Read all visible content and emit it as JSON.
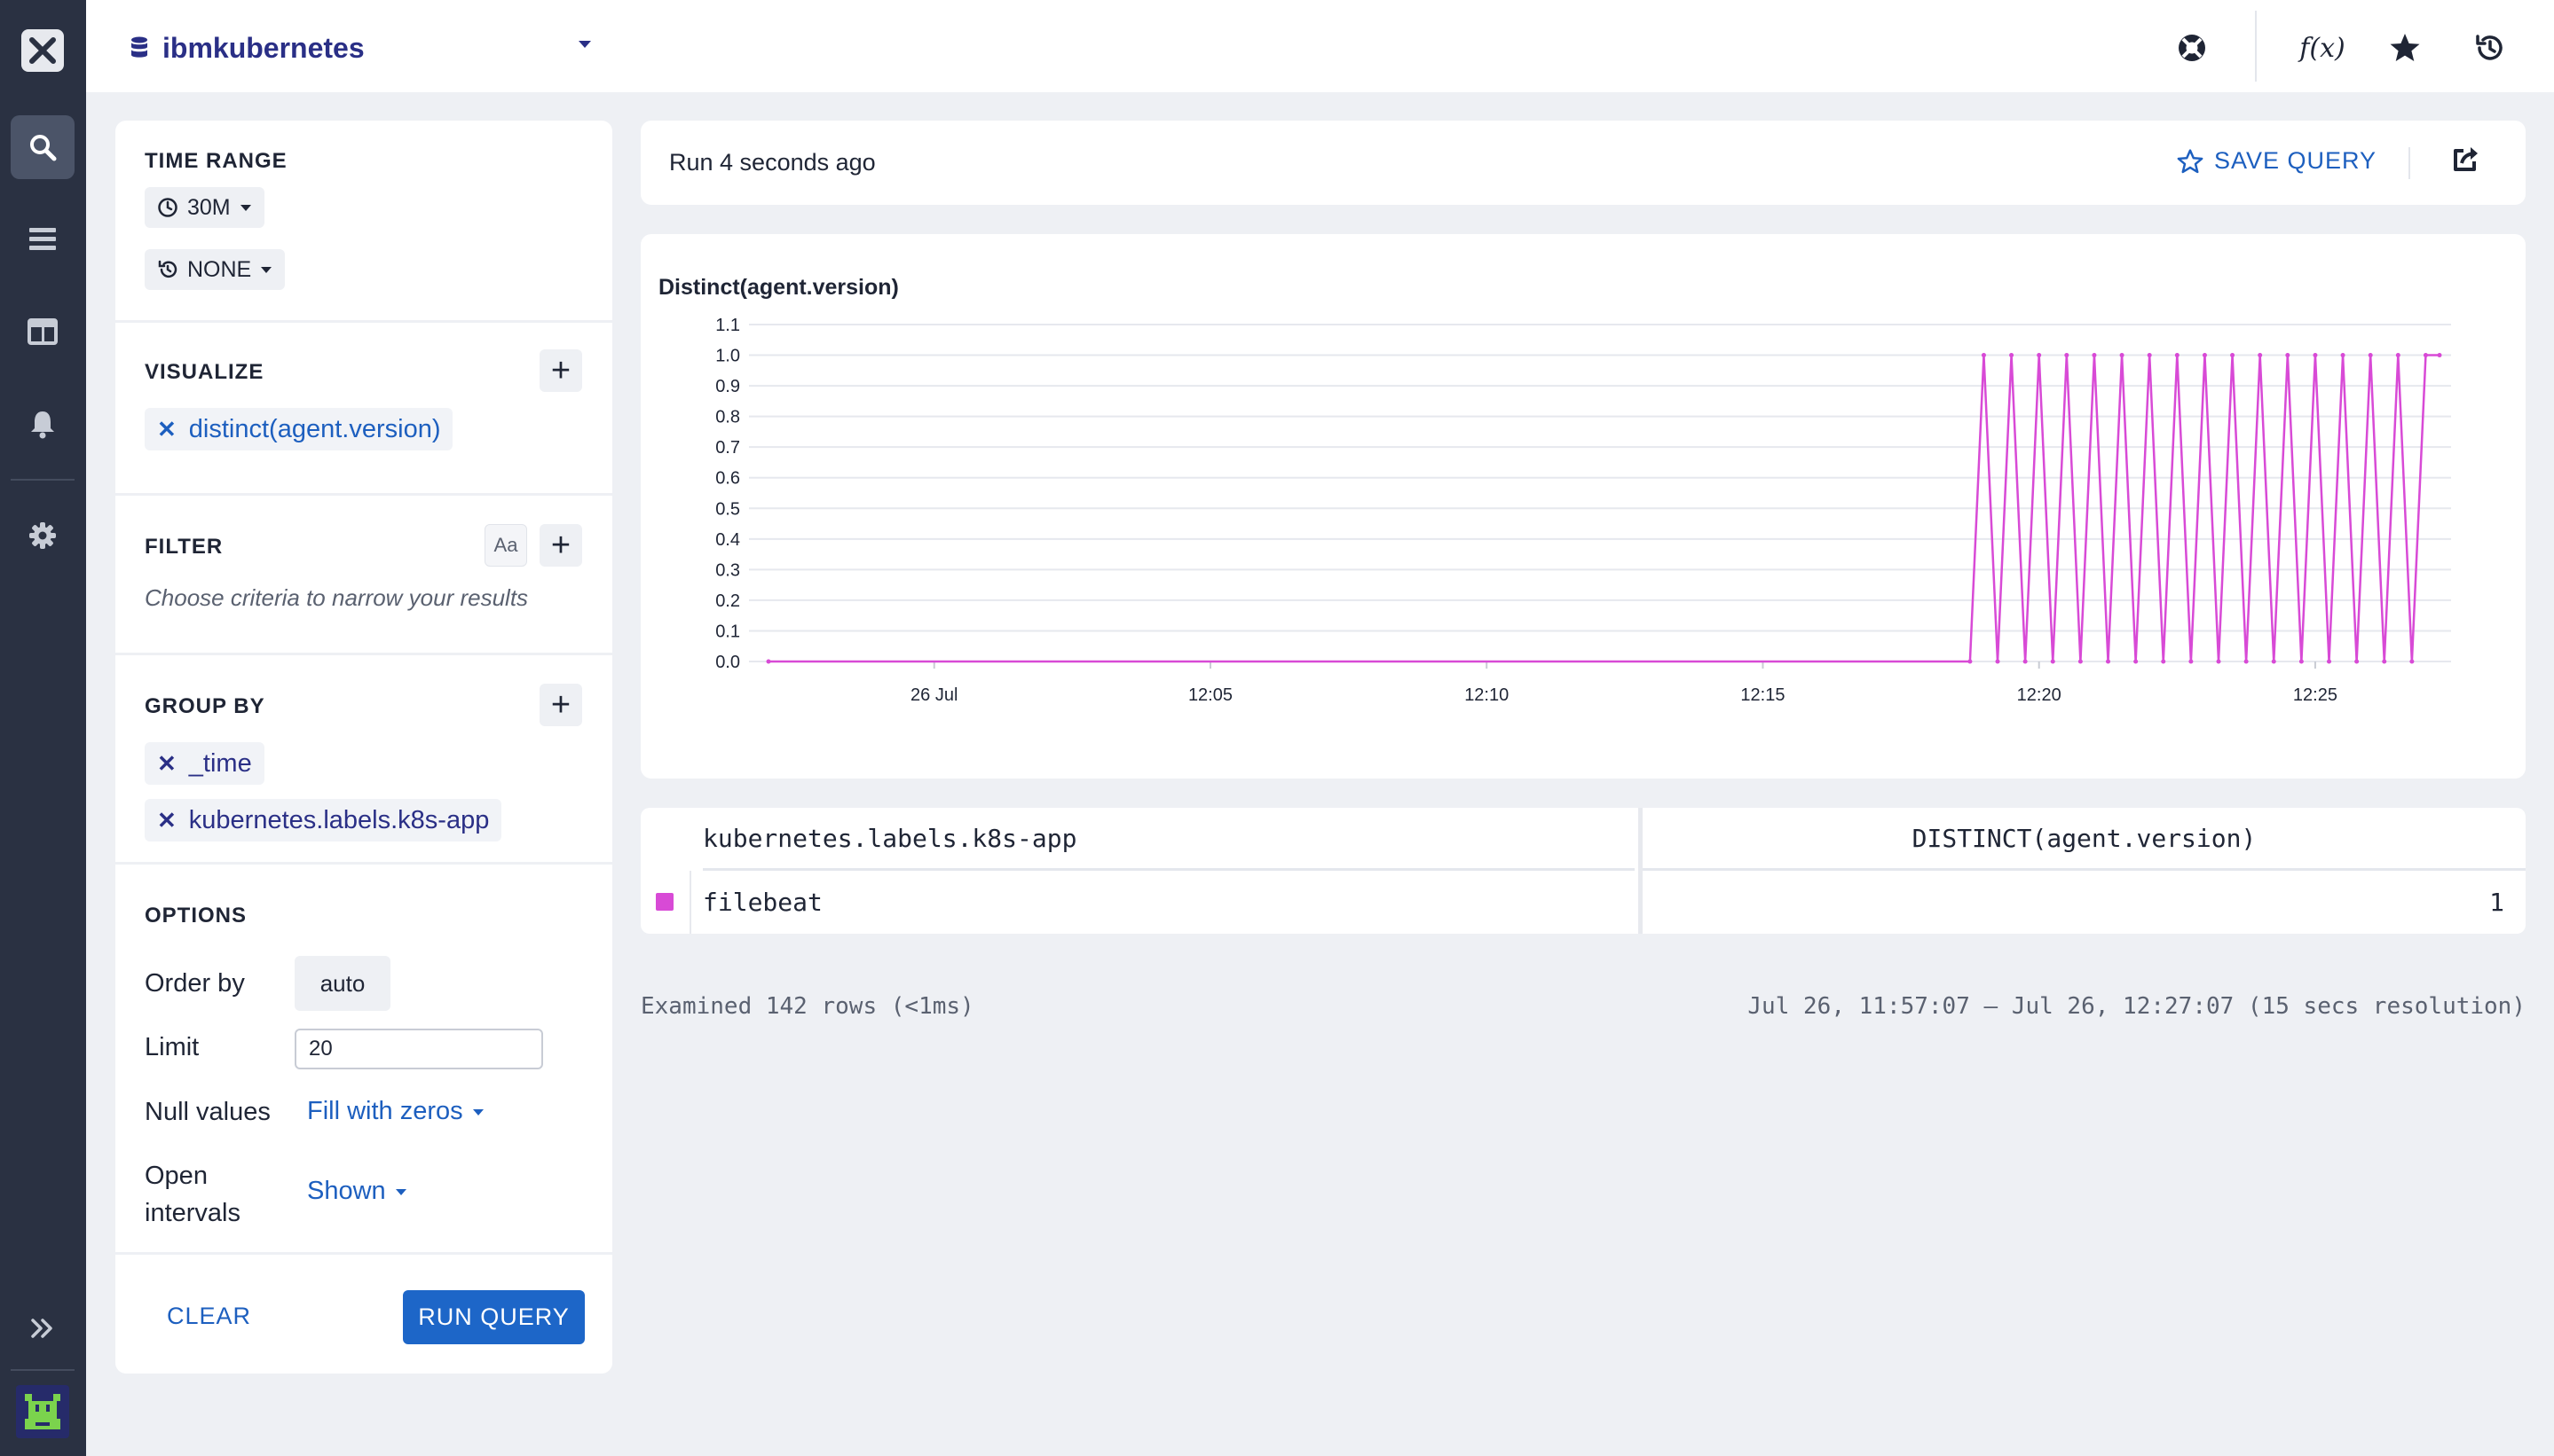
{
  "datasource": {
    "name": "ibmkubernetes"
  },
  "topbar": {
    "icons": [
      "help-ring-icon",
      "function-icon",
      "star-icon",
      "history-icon"
    ],
    "function_label": "f(x)"
  },
  "sidebar": {
    "items": [
      "search-icon",
      "stream-icon",
      "dashboard-icon",
      "bell-icon",
      "gear-icon",
      "expand-icon"
    ]
  },
  "query": {
    "time_range": {
      "title": "TIME RANGE",
      "range": "30M",
      "compare": "NONE"
    },
    "visualize": {
      "title": "VISUALIZE",
      "items": [
        "distinct(agent.version)"
      ]
    },
    "filter": {
      "title": "FILTER",
      "case_label": "Aa",
      "hint": "Choose criteria to narrow your results"
    },
    "group_by": {
      "title": "GROUP BY",
      "items": [
        "_time",
        "kubernetes.labels.k8s-app"
      ]
    },
    "options": {
      "title": "OPTIONS",
      "order_by_label": "Order by",
      "order_by_value": "auto",
      "limit_label": "Limit",
      "limit_value": "20",
      "null_label": "Null values",
      "null_value": "Fill with zeros",
      "open_label_1": "Open",
      "open_label_2": "intervals",
      "open_value": "Shown"
    },
    "clear_label": "CLEAR",
    "run_label": "RUN QUERY"
  },
  "results": {
    "run_status": "Run 4 seconds ago",
    "save_label": "SAVE QUERY",
    "table": {
      "headers": [
        "kubernetes.labels.k8s-app",
        "DISTINCT(agent.version)"
      ],
      "rows": [
        {
          "app": "filebeat",
          "value": "1",
          "color": "#d84ad6"
        }
      ]
    },
    "examined": "Examined 142 rows (<1ms)",
    "range_text": "Jul 26, 11:57:07 — Jul 26, 12:27:07 (15 secs resolution)"
  },
  "chart_data": {
    "type": "line",
    "title": "Distinct(agent.version)",
    "xlabel": "",
    "ylabel": "",
    "ylim": [
      0,
      1.1
    ],
    "yticks": [
      "0.0",
      "0.1",
      "0.2",
      "0.3",
      "0.4",
      "0.5",
      "0.6",
      "0.7",
      "0.8",
      "0.9",
      "1.0",
      "1.1"
    ],
    "xticks": [
      "26 Jul",
      "12:05",
      "12:10",
      "12:15",
      "12:20",
      "12:25"
    ],
    "xtick_minutes": [
      0,
      5,
      10,
      15,
      20,
      25
    ],
    "x_start_min": -3,
    "x_end_min": 27.25,
    "grid": true,
    "series": [
      {
        "color": "#d84ad6",
        "points_minutes": [
          -3,
          18.75,
          19,
          19.25,
          19.5,
          19.75,
          20,
          20.25,
          20.5,
          20.75,
          21,
          21.25,
          21.5,
          21.75,
          22,
          22.25,
          22.5,
          22.75,
          23,
          23.25,
          23.5,
          23.75,
          24,
          24.25,
          24.5,
          24.75,
          25,
          25.25,
          25.5,
          25.75,
          26,
          26.25,
          26.5,
          26.75,
          27,
          27.25
        ],
        "values": [
          0,
          0,
          1,
          0,
          1,
          0,
          1,
          0,
          1,
          0,
          1,
          0,
          1,
          0,
          1,
          0,
          1,
          0,
          1,
          0,
          1,
          0,
          1,
          0,
          1,
          0,
          1,
          0,
          1,
          0,
          1,
          0,
          1,
          0,
          1,
          1
        ]
      }
    ]
  }
}
